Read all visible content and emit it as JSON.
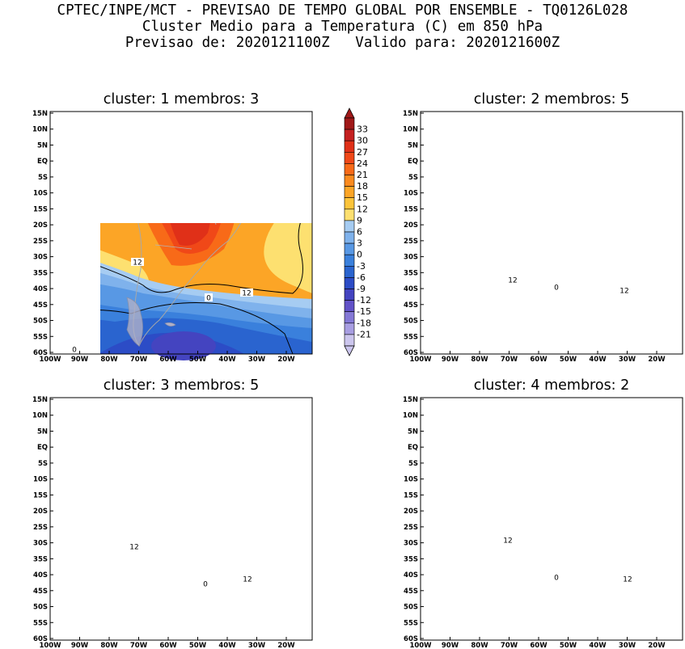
{
  "title": {
    "line1": "CPTEC/INPE/MCT - PREVISAO DE TEMPO GLOBAL POR ENSEMBLE - TQ0126L028",
    "line2": "Cluster Medio para a Temperatura (C) em 850 hPa",
    "line3": "Previsao de: 2020121100Z   Valido para: 2020121600Z"
  },
  "axes": {
    "lat_labels": [
      "15N",
      "10N",
      "5N",
      "EQ",
      "5S",
      "10S",
      "15S",
      "20S",
      "25S",
      "30S",
      "35S",
      "40S",
      "45S",
      "50S",
      "55S",
      "60S"
    ],
    "lon_labels": [
      "100W",
      "90W",
      "80W",
      "70W",
      "60W",
      "50W",
      "40W",
      "30W",
      "20W"
    ]
  },
  "colorbar": {
    "labels": [
      "33",
      "30",
      "27",
      "24",
      "21",
      "18",
      "15",
      "12",
      "9",
      "6",
      "3",
      "0",
      "-3",
      "-6",
      "-9",
      "-12",
      "-15",
      "-18",
      "-21"
    ],
    "colors": [
      "#a01818",
      "#c42020",
      "#e03018",
      "#f04818",
      "#f86a18",
      "#fb8a1e",
      "#fca526",
      "#fcc43a",
      "#fde070",
      "#a6ccf2",
      "#7fb2ec",
      "#5898e4",
      "#3a80dc",
      "#2a64cf",
      "#2c4cc6",
      "#4444c0",
      "#6252c8",
      "#8478d6",
      "#a89ee2",
      "#ccc6ee"
    ]
  },
  "panels": [
    {
      "title": "cluster: 1   membros: 3",
      "contour_labels": [
        "12",
        "12",
        "0",
        "0"
      ]
    },
    {
      "title": "cluster: 2   membros: 5",
      "contour_labels": [
        "12",
        "0",
        "12"
      ]
    },
    {
      "title": "cluster: 3   membros: 5",
      "contour_labels": [
        "12",
        "12",
        "0"
      ]
    },
    {
      "title": "cluster: 4   membros: 2",
      "contour_labels": [
        "12",
        "0",
        "12"
      ]
    }
  ]
}
